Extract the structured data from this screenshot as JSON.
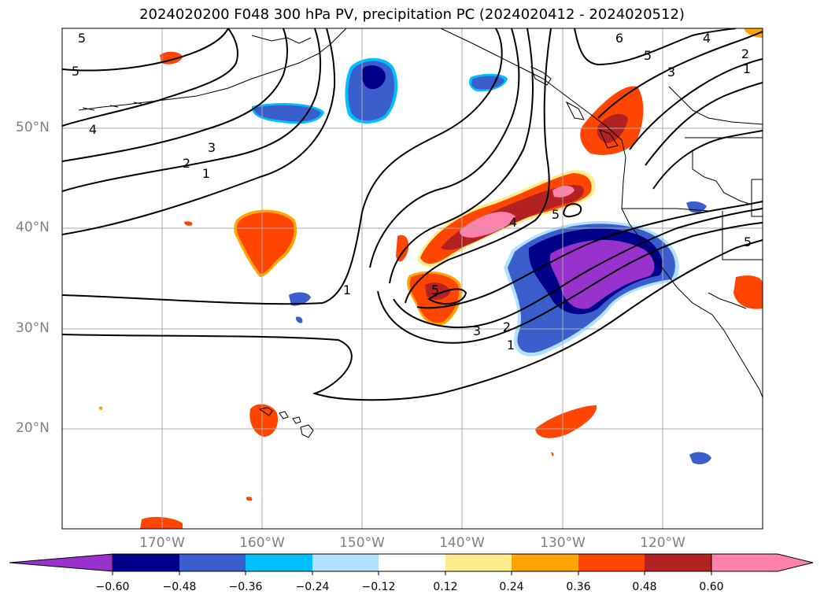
{
  "title": "2024020200 F048 300 hPa PV, precipitation PC (2024020412 - 2024020512)",
  "lat_labels": [
    "50°N",
    "40°N",
    "30°N",
    "20°N"
  ],
  "lon_labels": [
    "170°W",
    "160°W",
    "150°W",
    "140°W",
    "130°W",
    "120°W"
  ],
  "colorbar": {
    "ticks": [
      "−0.60",
      "−0.48",
      "−0.36",
      "−0.24",
      "−0.12",
      "0.12",
      "0.24",
      "0.36",
      "0.48",
      "0.60"
    ],
    "colors": [
      "#9932cc",
      "#00008b",
      "#3a5fcd",
      "#00bfff",
      "#b0e2ff",
      "#ffffff",
      "#ffec8b",
      "#ffa500",
      "#ff4500",
      "#b22222",
      "#ff82ab"
    ]
  },
  "contour_labels": [
    "5",
    "5",
    "4",
    "3",
    "2",
    "1",
    "1",
    "1",
    "2",
    "3",
    "4",
    "5",
    "5",
    "6",
    "5",
    "4",
    "2",
    "3",
    "1",
    "5"
  ]
}
